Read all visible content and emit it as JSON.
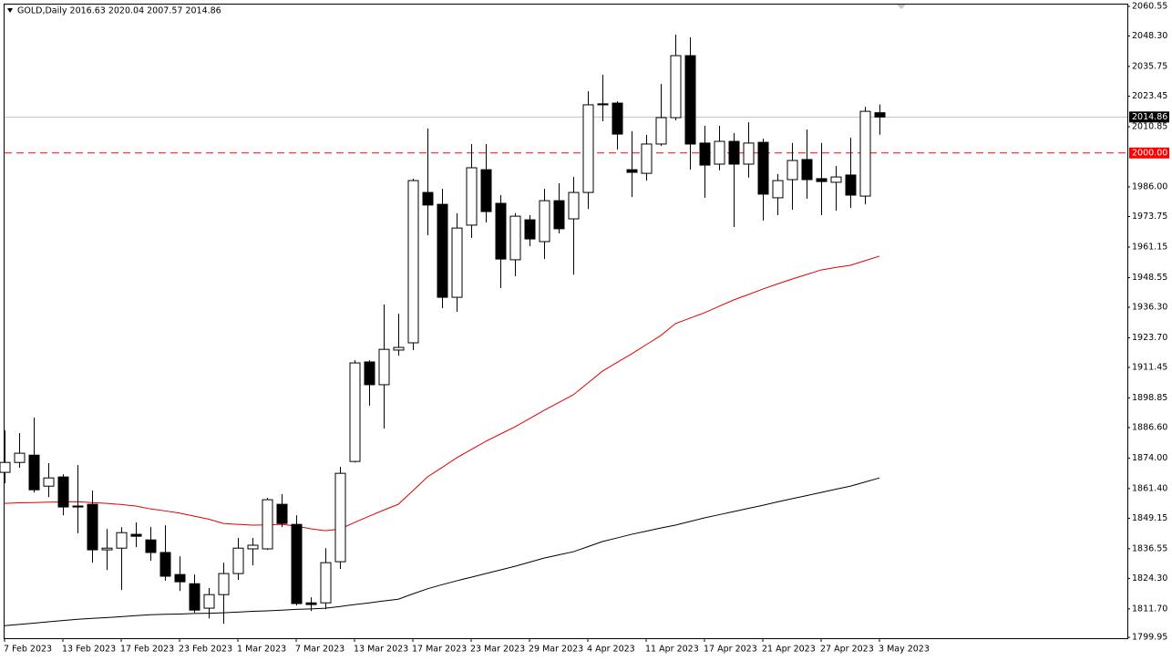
{
  "chart_data": {
    "type": "candlestick",
    "title": "GOLD,Daily  2016.63 2020.04 2007.57 2014.86",
    "categories": [
      "7 Feb 2023",
      null,
      null,
      null,
      "13 Feb 2023",
      null,
      null,
      null,
      "17 Feb 2023",
      null,
      null,
      null,
      "23 Feb 2023",
      null,
      null,
      null,
      "1 Mar 2023",
      null,
      null,
      null,
      "7 Mar 2023",
      null,
      null,
      null,
      "13 Mar 2023",
      null,
      null,
      null,
      "17 Mar 2023",
      null,
      null,
      null,
      "23 Mar 2023",
      null,
      null,
      null,
      "29 Mar 2023",
      null,
      null,
      null,
      "4 Apr 2023",
      null,
      null,
      null,
      "11 Apr 2023",
      null,
      null,
      null,
      "17 Apr 2023",
      null,
      null,
      null,
      "21 Apr 2023",
      null,
      null,
      null,
      "27 Apr 2023",
      null,
      null,
      null,
      "3 May 2023"
    ],
    "open": [
      1868.1,
      1872.2,
      1875.2,
      1862.4,
      1866.2,
      1854.2,
      1854.9,
      1836.1,
      1836.8,
      1842.5,
      1840.2,
      1835.0,
      1825.9,
      1822.1,
      1812.0,
      1817.6,
      1826.3,
      1836.5,
      1836.5,
      1854.9,
      1846.6,
      1814.2,
      1814.2,
      1831.2,
      1872.6,
      1913.7,
      1904.3,
      1918.6,
      1921.6,
      1983.7,
      1978.8,
      1940.4,
      1970.2,
      1993.1,
      1979.2,
      1955.9,
      1972.4,
      1963.4,
      1980.3,
      1972.8,
      1983.7,
      2020.3,
      2020.6,
      1993.1,
      1991.6,
      2003.7,
      2014.6,
      2040.2,
      2004.1,
      1995.4,
      2004.8,
      1995.4,
      2004.4,
      1981.5,
      1989.0,
      1997.3,
      1989.4,
      1987.9,
      1990.9,
      1982.2,
      2016.63
    ],
    "high": [
      1885.4,
      1884.3,
      1890.7,
      1871.9,
      1867.3,
      1871.1,
      1860.6,
      1844.7,
      1845.5,
      1847.4,
      1845.5,
      1846.2,
      1833.4,
      1825.9,
      1820.3,
      1830.8,
      1841.0,
      1841.0,
      1857.6,
      1859.1,
      1850.4,
      1816.5,
      1836.8,
      1870.4,
      1914.4,
      1914.4,
      1937.4,
      1933.6,
      1989.4,
      2010.1,
      1985.2,
      1975.1,
      2003.7,
      2003.7,
      1982.6,
      1975.1,
      1974.3,
      1985.2,
      1987.5,
      1990.1,
      2025.5,
      2032.3,
      2021.4,
      2009.0,
      2007.5,
      2028.5,
      2048.9,
      2047.8,
      2011.2,
      2011.2,
      2008.2,
      2012.7,
      2005.9,
      1991.3,
      2004.1,
      2009.7,
      2004.1,
      1994.6,
      2006.3,
      2019.1,
      2020.04
    ],
    "low": [
      1863.6,
      1870.0,
      1859.8,
      1857.9,
      1850.4,
      1842.9,
      1830.8,
      1827.8,
      1819.5,
      1837.2,
      1831.6,
      1823.3,
      1819.1,
      1810.1,
      1807.8,
      1805.6,
      1823.7,
      1829.7,
      1836.1,
      1845.5,
      1813.1,
      1810.8,
      1811.6,
      1828.2,
      1872.2,
      1895.6,
      1886.2,
      1916.3,
      1918.6,
      1966.0,
      1935.9,
      1934.4,
      1964.9,
      1971.3,
      1944.2,
      1949.1,
      1961.5,
      1956.2,
      1966.8,
      1949.8,
      1976.9,
      2013.1,
      2001.4,
      1981.8,
      1988.6,
      2002.9,
      2013.5,
      1993.1,
      1981.5,
      1992.8,
      1969.4,
      1989.8,
      1972.1,
      1974.3,
      1976.6,
      1981.1,
      1974.3,
      1976.2,
      1977.3,
      1978.8,
      2007.57
    ],
    "close": [
      1872.2,
      1876.0,
      1860.9,
      1865.8,
      1853.8,
      1853.8,
      1836.1,
      1836.8,
      1843.2,
      1841.7,
      1835.0,
      1825.2,
      1822.9,
      1811.2,
      1817.6,
      1826.3,
      1836.8,
      1838.0,
      1856.8,
      1847.0,
      1813.9,
      1813.5,
      1830.8,
      1867.7,
      1913.3,
      1904.3,
      1918.9,
      1919.7,
      1988.6,
      1978.5,
      1940.4,
      1969.0,
      1993.9,
      1975.8,
      1956.2,
      1973.9,
      1964.5,
      1980.3,
      1968.7,
      1983.7,
      2019.9,
      2019.9,
      2007.8,
      1992.0,
      2003.7,
      2014.6,
      2040.2,
      2003.7,
      1995.0,
      2004.8,
      1995.4,
      2004.1,
      1983.0,
      1988.6,
      1996.9,
      1989.0,
      1988.2,
      1990.1,
      1982.6,
      2017.2,
      2014.86
    ],
    "up_color": "#ffffff",
    "down_color": "#000000",
    "series": [
      {
        "color": "#e00000",
        "values": [
          1855.3,
          1855.5,
          1855.6,
          1855.8,
          1855.9,
          1856.0,
          1855.6,
          1855.3,
          1854.8,
          1854.2,
          1853.0,
          1852.2,
          1851.3,
          1850.0,
          1848.8,
          1847.0,
          1846.6,
          1846.3,
          1846.4,
          1846.6,
          1845.9,
          1844.8,
          1844.0,
          1844.7,
          1847.4,
          1850.0,
          1852.5,
          1854.9,
          1860.5,
          1866.2,
          1870.1,
          1874.1,
          1877.5,
          1880.9,
          1883.9,
          1886.9,
          1890.3,
          1893.7,
          1896.9,
          1900.1,
          1905.0,
          1909.9,
          1913.5,
          1917.0,
          1920.8,
          1924.6,
          1929.5,
          1931.8,
          1934.0,
          1936.7,
          1939.3,
          1941.5,
          1943.8,
          1945.9,
          1947.9,
          1949.8,
          1951.7,
          1952.7,
          1953.6,
          1955.5,
          1957.4
        ]
      },
      {
        "color": "#000000",
        "values": [
          1804.8,
          1805.3,
          1805.8,
          1806.4,
          1806.9,
          1807.4,
          1807.8,
          1808.1,
          1808.5,
          1808.9,
          1809.3,
          1809.5,
          1809.6,
          1809.8,
          1809.9,
          1810.1,
          1810.4,
          1810.7,
          1810.9,
          1811.2,
          1811.5,
          1811.7,
          1812.0,
          1812.7,
          1813.5,
          1814.2,
          1815.0,
          1815.7,
          1817.9,
          1820.0,
          1821.7,
          1823.3,
          1824.8,
          1826.3,
          1827.8,
          1829.3,
          1831.0,
          1832.7,
          1834.0,
          1835.3,
          1837.4,
          1839.5,
          1841.0,
          1842.5,
          1843.8,
          1845.1,
          1846.3,
          1847.8,
          1849.3,
          1850.6,
          1851.9,
          1853.2,
          1854.5,
          1855.9,
          1857.2,
          1858.5,
          1859.8,
          1861.1,
          1862.4,
          1864.1,
          1865.8
        ]
      }
    ],
    "price_line": 2014.86,
    "level_line": {
      "value": 2000,
      "label": "2000.00"
    },
    "level_color": "#ff0000",
    "ylim": [
      1799.6,
      2061.3
    ],
    "yticks": [
      2060.55,
      {
        "value": 2048.3,
        "label": "2048.30"
      },
      2035.75,
      2023.45,
      2010.85,
      {
        "value": 1986,
        "label": "1986.00"
      },
      1973.75,
      1961.15,
      1948.55,
      {
        "value": 1936.3,
        "label": "1936.30"
      },
      {
        "value": 1923.7,
        "label": "1923.70"
      },
      1911.45,
      1898.85,
      {
        "value": 1886.6,
        "label": "1886.60"
      },
      {
        "value": 1874,
        "label": "1874.00"
      },
      {
        "value": 1861.4,
        "label": "1861.40"
      },
      1849.15,
      1836.55,
      {
        "value": 1824.3,
        "label": "1824.30"
      },
      {
        "value": 1811.7,
        "label": "1811.70"
      },
      1799.95
    ]
  }
}
